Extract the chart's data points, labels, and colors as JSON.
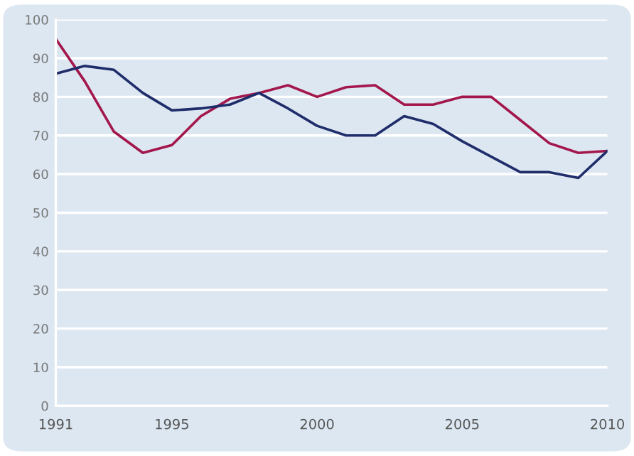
{
  "chart_data": {
    "type": "line",
    "x": [
      1991,
      1992,
      1993,
      1994,
      1995,
      1996,
      1997,
      1998,
      1999,
      2000,
      2001,
      2002,
      2003,
      2004,
      2005,
      2006,
      2007,
      2008,
      2009,
      2010
    ],
    "series": [
      {
        "color": "#a3174c",
        "values": [
          95,
          84,
          71,
          65.5,
          67.5,
          75,
          79.5,
          81,
          83,
          80,
          82.5,
          83,
          78,
          78,
          80,
          80,
          74,
          68,
          65.5,
          66
        ]
      },
      {
        "color": "#1f2d6b",
        "values": [
          86,
          88,
          87,
          81,
          76.5,
          77,
          78,
          81,
          77,
          72.5,
          70,
          70,
          75,
          73,
          68.5,
          64.5,
          60.5,
          60.5,
          59,
          66
        ]
      }
    ],
    "xlim": [
      1991,
      2010
    ],
    "xticks": [
      1991,
      1995,
      2000,
      2005,
      2010
    ],
    "ylim": [
      0,
      100
    ],
    "yticks": [
      0,
      10,
      20,
      30,
      40,
      50,
      60,
      70,
      80,
      90,
      100
    ],
    "grid": "y",
    "marker": "none",
    "line_style": "solid"
  }
}
